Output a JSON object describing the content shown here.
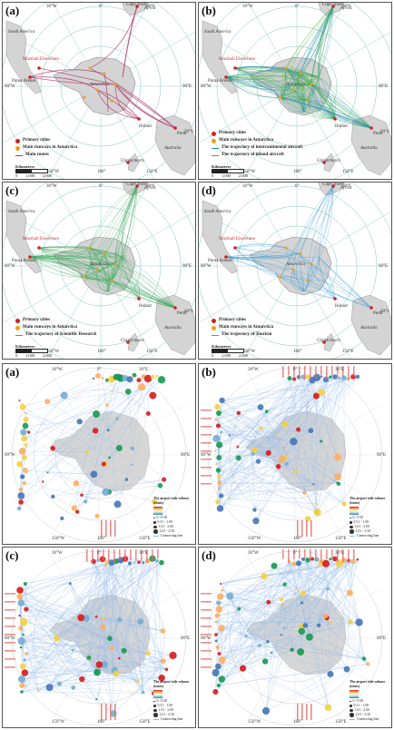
{
  "map_panels": [
    {
      "label": "(a)",
      "legend": [
        "Primary cities",
        "Main runways in Antarctica",
        "Main routes"
      ],
      "route_color": "#b03a6a"
    },
    {
      "label": "(b)",
      "legend": [
        "Primary cities",
        "Main runways in Antarctica",
        "The trajectory of intercontinental aircraft",
        "The trajectory of inland aircraft"
      ],
      "route_color": "#1f8fa0",
      "secondary_route_color": "#4aae2e"
    },
    {
      "label": "(c)",
      "legend": [
        "Primary cities",
        "Main runways in Antarctica",
        "The trajectory of Scientific Research"
      ],
      "route_color": "#3aa65a"
    },
    {
      "label": "(d)",
      "legend": [
        "Primary cities",
        "Main runways in Antarctica",
        "The trajectory of Tourism"
      ],
      "route_color": "#3a9ad6"
    }
  ],
  "map_common": {
    "lon_labels": [
      "30°W",
      "0°",
      "30°E",
      "90°W",
      "90°E",
      "150°W",
      "180°",
      "150°E",
      "30°S"
    ],
    "places": [
      "Cape Town",
      "Africa",
      "South America",
      "Antarctica",
      "Australia",
      "Punta Arenas",
      "Hobart",
      "Christchurch",
      "Perth",
      "Marshall Elsewhere"
    ],
    "scalebar_unit": "Kilometers",
    "scalebar_ticks": [
      "0",
      "1,000",
      "2,000"
    ],
    "city_color": "#cc2222",
    "runway_color": "#e8a21a",
    "land_color": "#d4d4d4",
    "grid_color": "#7cc6c0"
  },
  "graph_panels": [
    {
      "label": "(a)"
    },
    {
      "label": "(b)"
    },
    {
      "label": "(c)"
    },
    {
      "label": "(d)"
    }
  ],
  "graph_common": {
    "lon_labels": [
      "30°W",
      "0°",
      "30°E",
      "90°W",
      "90°E",
      "150°W",
      "180°",
      "150°E"
    ],
    "legend_title": "The airport ride volume (times)",
    "size_classes": [
      "0 - 0.50",
      "0.51 - 1.00",
      "1.01 - 2.00",
      "2.01 - 3.50"
    ],
    "connecting_line_label": "Connecting line",
    "edge_color": "#8fb8e8",
    "land_color": "#d6d6d6"
  }
}
